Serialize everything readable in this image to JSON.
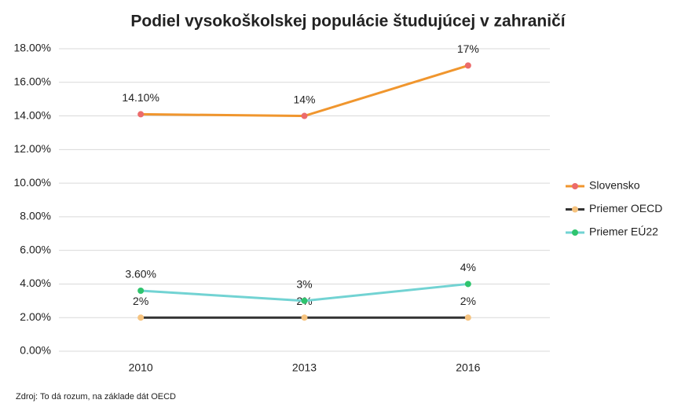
{
  "chart_data": {
    "type": "line",
    "title": "Podiel vysokoškolskej populácie študujúcej v zahraničí",
    "note": "Zdroj: To dá rozum, na základe dát OECD",
    "categories": [
      "2010",
      "2013",
      "2016"
    ],
    "series": [
      {
        "name": "Slovensko",
        "color": "#f0962e",
        "marker_color": "#ec6b6b",
        "values": [
          14.1,
          14,
          17
        ],
        "value_labels": [
          "14.10%",
          "14%",
          "17%"
        ]
      },
      {
        "name": "Priemer OECD",
        "color": "#333333",
        "marker_color": "#f6c37f",
        "values": [
          2,
          2,
          2
        ],
        "value_labels": [
          "2%",
          "2%",
          "2%"
        ]
      },
      {
        "name": "Priemer EÚ22",
        "color": "#72d3d3",
        "marker_color": "#2fc46e",
        "values": [
          3.6,
          3,
          4
        ],
        "value_labels": [
          "3.60%",
          "3%",
          "4%"
        ]
      }
    ],
    "ylim": [
      0,
      18
    ],
    "yticks": [
      {
        "value": 0,
        "label": "0.00%"
      },
      {
        "value": 2,
        "label": "2.00%"
      },
      {
        "value": 4,
        "label": "4.00%"
      },
      {
        "value": 6,
        "label": "6.00%"
      },
      {
        "value": 8,
        "label": "8.00%"
      },
      {
        "value": 10,
        "label": "10.00%"
      },
      {
        "value": 12,
        "label": "12.00%"
      },
      {
        "value": 14,
        "label": "14.00%"
      },
      {
        "value": 16,
        "label": "16.00%"
      },
      {
        "value": 18,
        "label": "18.00%"
      }
    ],
    "grid": true,
    "legend": "right"
  }
}
